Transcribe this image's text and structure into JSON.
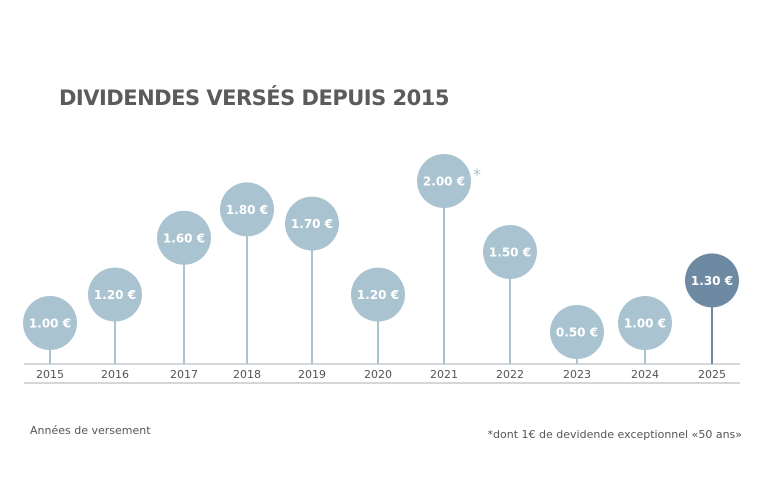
{
  "chart_data": {
    "type": "lollipop",
    "title": "DIVIDENDES VERSÉS DEPUIS 2015",
    "xlabel": "Années de versement",
    "ylabel": "",
    "categories": [
      "2015",
      "2016",
      "2017",
      "2018",
      "2019",
      "2020",
      "2021",
      "2022",
      "2023",
      "2024",
      "2025"
    ],
    "values": [
      1.0,
      1.2,
      1.6,
      1.8,
      1.7,
      1.2,
      2.0,
      1.5,
      0.5,
      1.0,
      1.3
    ],
    "labels": [
      "1.00 €",
      "1.20 €",
      "1.60 €",
      "1.80 €",
      "1.70 €",
      "1.20 €",
      "2.00 €",
      "1.50 €",
      "0.50 €",
      "1.00 €",
      "1.30 €"
    ],
    "annotation": {
      "category": "2021",
      "mark": "*"
    },
    "footnote": "*dont 1€ de devidende exceptionnel «50 ans»",
    "highlight_category": "2025",
    "colors": {
      "normal": "#a9c3d0",
      "highlight": "#6e8aa2",
      "axis": "#c6c9cc",
      "text": "#555555"
    }
  }
}
